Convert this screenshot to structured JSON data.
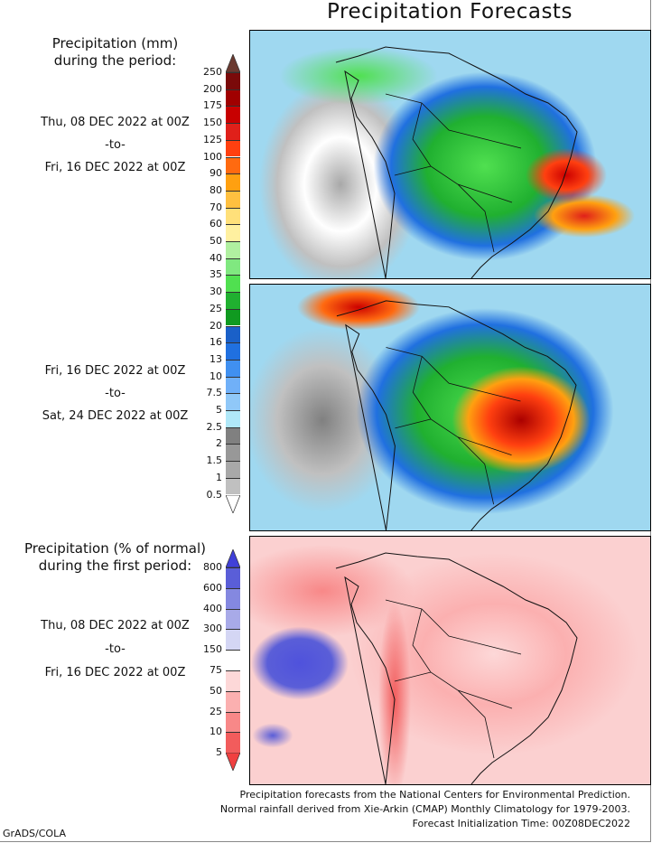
{
  "title": "Precipitation Forecasts",
  "amount_legend": {
    "heading_line1": "Precipitation (mm)",
    "heading_line2": "during the period:",
    "ticks": [
      "250",
      "200",
      "175",
      "150",
      "125",
      "100",
      "90",
      "80",
      "70",
      "60",
      "50",
      "40",
      "35",
      "30",
      "25",
      "20",
      "16",
      "13",
      "10",
      "7.5",
      "5",
      "2.5",
      "2",
      "1.5",
      "1",
      "0.5"
    ],
    "colors": [
      "#7a0a0a",
      "#a00000",
      "#c80000",
      "#e0201a",
      "#ff4010",
      "#ff6a10",
      "#ffa010",
      "#ffc040",
      "#ffe07a",
      "#fff0a0",
      "#b0f0a0",
      "#80e880",
      "#50e050",
      "#20b030",
      "#109a20",
      "#1a60c8",
      "#2070e0",
      "#4090f0",
      "#70b0f8",
      "#90c8f8",
      "#b0e8f8",
      "#808080",
      "#989898",
      "#a8a8a8",
      "#c0c0c0"
    ],
    "over_color": "#6b3a30",
    "under_color": "#ffffff"
  },
  "period1": {
    "start": "Thu, 08 DEC 2022 at 00Z",
    "sep": "-to-",
    "end": "Fri, 16 DEC 2022 at 00Z"
  },
  "period2": {
    "start": "Fri, 16 DEC 2022 at 00Z",
    "sep": "-to-",
    "end": "Sat, 24 DEC 2022 at 00Z"
  },
  "percent_legend": {
    "heading_line1": "Precipitation (% of normal)",
    "heading_line2": "during the first period:",
    "ticks": [
      "800",
      "600",
      "400",
      "300",
      "150",
      "75",
      "50",
      "25",
      "10",
      "5"
    ],
    "colors": [
      "#5a5ed8",
      "#8488e0",
      "#a8aae8",
      "#d4d6f4",
      "#ffffff",
      "#fdd8d8",
      "#fbb0b0",
      "#f88888",
      "#f25c5c"
    ],
    "over_color": "#4040d8",
    "under_color": "#f04040"
  },
  "period3": {
    "start": "Thu, 08 DEC 2022 at 00Z",
    "sep": "-to-",
    "end": "Fri, 16 DEC 2022 at 00Z"
  },
  "footer": {
    "line1": "Precipitation forecasts from the National Centers for Environmental Prediction.",
    "line2": "Normal rainfall derived from Xie-Arkin (CMAP) Monthly Climatology for 1979-2003.",
    "line3": "Forecast Initialization Time: 00Z08DEC2022"
  },
  "credit": "GrADS/COLA"
}
